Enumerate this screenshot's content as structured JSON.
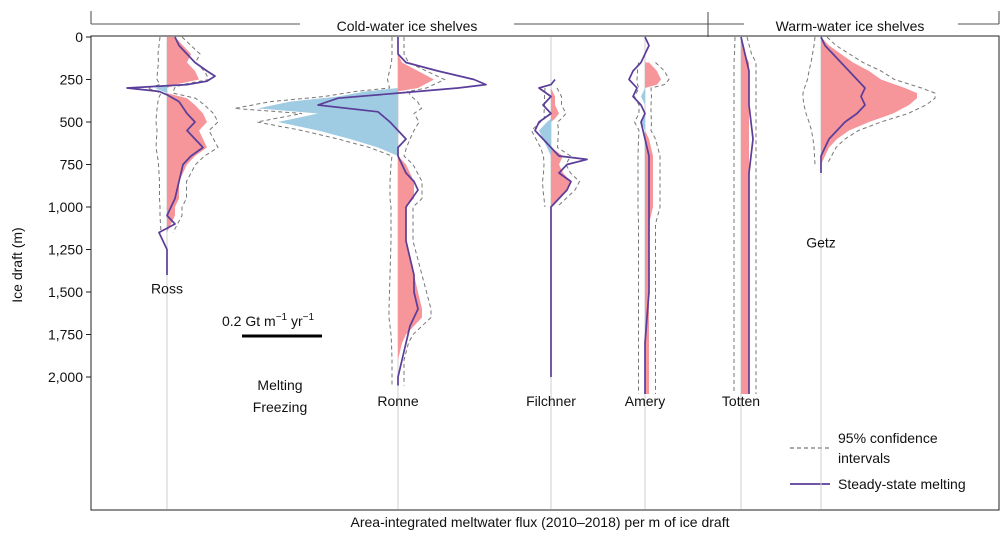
{
  "chart_data": {
    "type": "area",
    "xlabel": "Area-integrated meltwater flux (2010–2018) per m of ice draft",
    "ylabel": "Ice draft (m)",
    "ylim": [
      0,
      2200
    ],
    "y_inverted": true,
    "yticks": [
      {
        "value": 0,
        "label": "0"
      },
      {
        "value": 250,
        "label": "250"
      },
      {
        "value": 500,
        "label": "500"
      },
      {
        "value": 750,
        "label": "750"
      },
      {
        "value": 1000,
        "label": "1,000"
      },
      {
        "value": 1250,
        "label": "1,250"
      },
      {
        "value": 1500,
        "label": "1,500"
      },
      {
        "value": 1750,
        "label": "1,750"
      },
      {
        "value": 2000,
        "label": "2,000"
      }
    ],
    "x_unit": "Gt m⁻¹ yr⁻¹",
    "scale_bar": {
      "value": 0.2,
      "label_main": "0.2 Gt m",
      "label_sup1": "−1",
      "label_mid": " yr",
      "label_sup2": "−1"
    },
    "group_labels": {
      "cold": "Cold-water ice shelves",
      "warm": "Warm-water ice shelves"
    },
    "key_melting": "Melting",
    "key_freezing": "Freezing",
    "legend": {
      "ci": "95% confidence",
      "ci2": "intervals",
      "steady": "Steady-state melting",
      "position": "bottom-right"
    },
    "colors": {
      "melting": "#f6959a",
      "freezing": "#9fcce3",
      "steady": "#5b3d9a",
      "ci": "#777777",
      "melting_text": "#e5262a",
      "freezing_text": "#3d86c2"
    },
    "shelves": [
      {
        "name": "Ross",
        "label_y": 1480,
        "profile": [
          [
            0,
            0.02
          ],
          [
            50,
            0.04
          ],
          [
            100,
            0.06
          ],
          [
            150,
            0.05
          ],
          [
            200,
            0.07
          ],
          [
            250,
            0.08
          ],
          [
            280,
            0.02
          ],
          [
            300,
            -0.03
          ],
          [
            330,
            0.0
          ],
          [
            360,
            0.05
          ],
          [
            400,
            0.07
          ],
          [
            450,
            0.09
          ],
          [
            500,
            0.1
          ],
          [
            550,
            0.08
          ],
          [
            600,
            0.09
          ],
          [
            650,
            0.1
          ],
          [
            700,
            0.07
          ],
          [
            750,
            0.05
          ],
          [
            800,
            0.04
          ],
          [
            850,
            0.03
          ],
          [
            900,
            0.03
          ],
          [
            950,
            0.03
          ],
          [
            1000,
            0.02
          ],
          [
            1050,
            0.02
          ],
          [
            1100,
            0.01
          ],
          [
            1150,
            0.0
          ]
        ],
        "steady": [
          [
            0,
            0.02
          ],
          [
            50,
            0.03
          ],
          [
            100,
            0.05
          ],
          [
            150,
            0.07
          ],
          [
            200,
            0.1
          ],
          [
            230,
            0.12
          ],
          [
            260,
            0.1
          ],
          [
            280,
            0.05
          ],
          [
            300,
            -0.1
          ],
          [
            320,
            -0.02
          ],
          [
            340,
            0.0
          ],
          [
            380,
            0.03
          ],
          [
            450,
            0.05
          ],
          [
            500,
            0.07
          ],
          [
            550,
            0.05
          ],
          [
            600,
            0.07
          ],
          [
            650,
            0.09
          ],
          [
            700,
            0.06
          ],
          [
            750,
            0.04
          ],
          [
            850,
            0.03
          ],
          [
            950,
            0.02
          ],
          [
            1050,
            0.0
          ],
          [
            1100,
            0.02
          ],
          [
            1150,
            -0.02
          ],
          [
            1200,
            -0.01
          ],
          [
            1250,
            0.0
          ],
          [
            1300,
            0.0
          ],
          [
            1400,
            0.0
          ]
        ]
      },
      {
        "name": "Ronne",
        "label_y": 2140,
        "profile": [
          [
            0,
            0.0
          ],
          [
            50,
            0.0
          ],
          [
            100,
            0.0
          ],
          [
            150,
            0.01
          ],
          [
            200,
            0.05
          ],
          [
            250,
            0.09
          ],
          [
            300,
            0.05
          ],
          [
            320,
            -0.08
          ],
          [
            350,
            -0.15
          ],
          [
            380,
            -0.27
          ],
          [
            420,
            -0.35
          ],
          [
            450,
            -0.2
          ],
          [
            500,
            -0.3
          ],
          [
            550,
            -0.2
          ],
          [
            600,
            -0.12
          ],
          [
            650,
            -0.05
          ],
          [
            700,
            0.0
          ],
          [
            750,
            0.02
          ],
          [
            800,
            0.03
          ],
          [
            850,
            0.04
          ],
          [
            900,
            0.04
          ],
          [
            950,
            0.04
          ],
          [
            1000,
            0.02
          ],
          [
            1050,
            0.02
          ],
          [
            1100,
            0.02
          ],
          [
            1200,
            0.02
          ],
          [
            1300,
            0.03
          ],
          [
            1400,
            0.04
          ],
          [
            1500,
            0.05
          ],
          [
            1600,
            0.06
          ],
          [
            1650,
            0.06
          ],
          [
            1700,
            0.04
          ],
          [
            1750,
            0.02
          ],
          [
            1800,
            0.01
          ],
          [
            1900,
            0.0
          ],
          [
            2000,
            0.0
          ],
          [
            2050,
            0.0
          ]
        ],
        "steady": [
          [
            0,
            0.0
          ],
          [
            100,
            0.0
          ],
          [
            150,
            0.02
          ],
          [
            200,
            0.1
          ],
          [
            250,
            0.19
          ],
          [
            280,
            0.22
          ],
          [
            300,
            0.15
          ],
          [
            330,
            0.0
          ],
          [
            360,
            -0.15
          ],
          [
            400,
            -0.2
          ],
          [
            440,
            -0.05
          ],
          [
            500,
            -0.02
          ],
          [
            550,
            0.0
          ],
          [
            600,
            0.02
          ],
          [
            650,
            0.0
          ],
          [
            700,
            0.0
          ],
          [
            750,
            0.01
          ],
          [
            800,
            0.02
          ],
          [
            850,
            0.04
          ],
          [
            900,
            0.05
          ],
          [
            1000,
            0.02
          ],
          [
            1100,
            0.02
          ],
          [
            1200,
            0.02
          ],
          [
            1300,
            0.03
          ],
          [
            1400,
            0.04
          ],
          [
            1500,
            0.04
          ],
          [
            1600,
            0.05
          ],
          [
            1700,
            0.03
          ],
          [
            1800,
            0.02
          ],
          [
            1900,
            0.01
          ],
          [
            2000,
            0.0
          ],
          [
            2050,
            0.0
          ]
        ]
      },
      {
        "name": "Filchner",
        "label_y": 2140,
        "profile": [
          [
            300,
            0.0
          ],
          [
            350,
            0.01
          ],
          [
            400,
            0.01
          ],
          [
            450,
            0.02
          ],
          [
            480,
            0.01
          ],
          [
            500,
            -0.01
          ],
          [
            550,
            -0.03
          ],
          [
            600,
            -0.02
          ],
          [
            650,
            -0.01
          ],
          [
            700,
            0.03
          ],
          [
            750,
            0.02
          ],
          [
            800,
            0.03
          ],
          [
            850,
            0.05
          ],
          [
            900,
            0.04
          ],
          [
            950,
            0.02
          ],
          [
            1000,
            0.0
          ]
        ],
        "steady": [
          [
            250,
            0.01
          ],
          [
            280,
            0.0
          ],
          [
            300,
            -0.03
          ],
          [
            350,
            0.0
          ],
          [
            400,
            -0.02
          ],
          [
            450,
            0.0
          ],
          [
            500,
            -0.03
          ],
          [
            550,
            -0.04
          ],
          [
            600,
            -0.02
          ],
          [
            650,
            0.0
          ],
          [
            700,
            0.02
          ],
          [
            720,
            0.09
          ],
          [
            750,
            0.04
          ],
          [
            800,
            0.02
          ],
          [
            850,
            0.05
          ],
          [
            900,
            0.04
          ],
          [
            950,
            0.02
          ],
          [
            1000,
            0.0
          ],
          [
            1100,
            0.0
          ],
          [
            1200,
            0.0
          ],
          [
            1500,
            0.0
          ],
          [
            2000,
            0.0
          ]
        ]
      },
      {
        "name": "Amery",
        "label_y": 2140,
        "profile": [
          [
            150,
            0.01
          ],
          [
            200,
            0.03
          ],
          [
            250,
            0.04
          ],
          [
            280,
            0.03
          ],
          [
            300,
            0.0
          ],
          [
            350,
            -0.01
          ],
          [
            400,
            0.0
          ],
          [
            450,
            0.0
          ],
          [
            500,
            -0.01
          ],
          [
            550,
            0.0
          ],
          [
            600,
            0.01
          ],
          [
            700,
            0.02
          ],
          [
            800,
            0.02
          ],
          [
            900,
            0.02
          ],
          [
            1000,
            0.02
          ],
          [
            1100,
            0.01
          ],
          [
            1200,
            0.01
          ],
          [
            1500,
            0.01
          ],
          [
            1800,
            0.01
          ],
          [
            2000,
            0.01
          ],
          [
            2100,
            0.01
          ]
        ],
        "steady": [
          [
            0,
            0.0
          ],
          [
            50,
            0.01
          ],
          [
            100,
            0.0
          ],
          [
            150,
            -0.01
          ],
          [
            200,
            -0.03
          ],
          [
            250,
            -0.04
          ],
          [
            300,
            -0.02
          ],
          [
            350,
            -0.03
          ],
          [
            400,
            -0.01
          ],
          [
            450,
            0.0
          ],
          [
            500,
            -0.01
          ],
          [
            600,
            0.0
          ],
          [
            700,
            0.01
          ],
          [
            800,
            0.01
          ],
          [
            900,
            0.01
          ],
          [
            1000,
            0.01
          ],
          [
            1200,
            0.01
          ],
          [
            1500,
            0.01
          ],
          [
            1800,
            0.0
          ],
          [
            2100,
            0.0
          ]
        ]
      },
      {
        "name": "Totten",
        "label_y": 2140,
        "profile": [
          [
            0,
            0.0
          ],
          [
            100,
            0.01
          ],
          [
            150,
            0.02
          ],
          [
            300,
            0.02
          ],
          [
            500,
            0.02
          ],
          [
            700,
            0.02
          ],
          [
            900,
            0.02
          ],
          [
            1100,
            0.02
          ],
          [
            1300,
            0.02
          ],
          [
            1500,
            0.02
          ],
          [
            1700,
            0.02
          ],
          [
            1900,
            0.02
          ],
          [
            2100,
            0.02
          ]
        ],
        "steady": [
          [
            0,
            0.0
          ],
          [
            100,
            0.01
          ],
          [
            200,
            0.02
          ],
          [
            400,
            0.02
          ],
          [
            600,
            0.03
          ],
          [
            800,
            0.02
          ],
          [
            1000,
            0.02
          ],
          [
            1200,
            0.02
          ],
          [
            1400,
            0.02
          ],
          [
            1600,
            0.02
          ],
          [
            1800,
            0.02
          ],
          [
            2000,
            0.02
          ],
          [
            2100,
            0.02
          ]
        ]
      },
      {
        "name": "Getz",
        "label_y": 1210,
        "profile": [
          [
            0,
            0.0
          ],
          [
            50,
            0.02
          ],
          [
            100,
            0.05
          ],
          [
            150,
            0.08
          ],
          [
            200,
            0.12
          ],
          [
            250,
            0.15
          ],
          [
            300,
            0.21
          ],
          [
            330,
            0.24
          ],
          [
            360,
            0.24
          ],
          [
            400,
            0.22
          ],
          [
            450,
            0.18
          ],
          [
            500,
            0.12
          ],
          [
            550,
            0.07
          ],
          [
            600,
            0.04
          ],
          [
            650,
            0.02
          ],
          [
            700,
            0.01
          ],
          [
            750,
            0.0
          ]
        ],
        "steady": [
          [
            0,
            0.0
          ],
          [
            50,
            0.01
          ],
          [
            100,
            0.03
          ],
          [
            150,
            0.05
          ],
          [
            200,
            0.07
          ],
          [
            250,
            0.09
          ],
          [
            300,
            0.11
          ],
          [
            350,
            0.1
          ],
          [
            400,
            0.11
          ],
          [
            450,
            0.09
          ],
          [
            500,
            0.06
          ],
          [
            550,
            0.04
          ],
          [
            600,
            0.02
          ],
          [
            650,
            0.01
          ],
          [
            700,
            0.0
          ],
          [
            800,
            0.0
          ]
        ]
      }
    ]
  }
}
